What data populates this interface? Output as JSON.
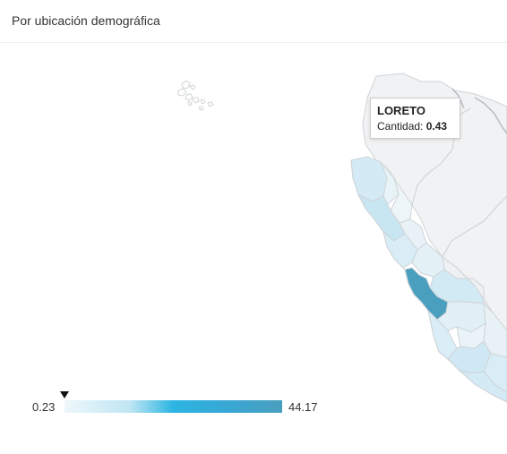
{
  "panel": {
    "title": "Por ubicación demográfica"
  },
  "tooltip": {
    "region": "LORETO",
    "metric_label": "Cantidad:",
    "metric_value": "0.43"
  },
  "legend": {
    "min": "0.23",
    "max": "44.17",
    "marker_value": 0.43,
    "gradient_colors": [
      "#eef7fb",
      "#bfe6f3",
      "#2cb5e3",
      "#4a9fbf"
    ]
  },
  "map": {
    "highlight_region": "Lima",
    "highlight_color": "#4a9fbf",
    "light_region_color": "#d4ebf5",
    "empty_region_color": "#f1f2f3",
    "border_color": "#cfd4d8"
  }
}
